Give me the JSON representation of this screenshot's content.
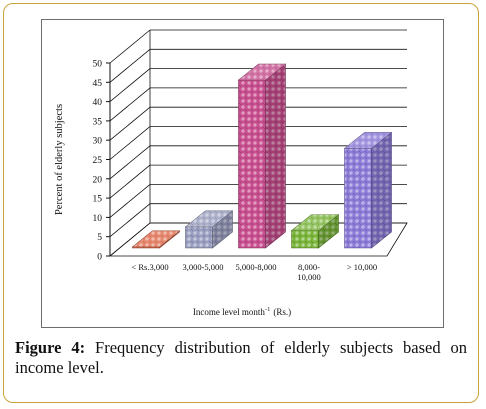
{
  "figure": {
    "label": "Figure 4:",
    "caption_line1": "Frequency distribution of elderly subjects based on",
    "caption_line2": "income level."
  },
  "chart_data": {
    "type": "bar",
    "style": "3d-column",
    "categories": [
      "< Rs.3,000",
      "3,000-5,000",
      "5,000-8,000",
      "8,000-10,000",
      "> 10,000"
    ],
    "category_lines": [
      [
        "< Rs.3,000"
      ],
      [
        "3,000-5,000"
      ],
      [
        "5,000-8,000"
      ],
      [
        "8,000-",
        "10,000"
      ],
      [
        "> 10,000"
      ]
    ],
    "values": [
      0.3,
      5.5,
      43.5,
      4.5,
      25.8
    ],
    "colors": [
      "#e06a4a",
      "#9a9ec0",
      "#c84f8f",
      "#7ab53a",
      "#8d7bd8"
    ],
    "xlabel": "Income level month",
    "xlabel_sup": "-1",
    "xlabel_unit": "(Rs.)",
    "ylabel": "Percent of elderly subjects",
    "ylim": [
      0,
      50
    ],
    "yticks": [
      0,
      5,
      10,
      15,
      20,
      25,
      30,
      35,
      40,
      45,
      50
    ],
    "grid": true,
    "legend": "none"
  }
}
